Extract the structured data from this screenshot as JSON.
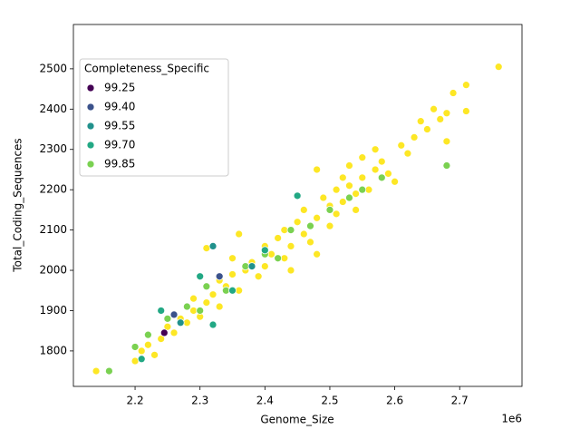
{
  "chart_data": {
    "type": "scatter",
    "x_label": "Genome_Size",
    "y_label": "Total_Coding_Sequences",
    "x_offset_label": "1e6",
    "legend_title": "Completeness_Specific",
    "legend_position": "upper left",
    "xlim": [
      2.105,
      2.796
    ],
    "xticks": [
      2.2,
      2.3,
      2.4,
      2.5,
      2.6,
      2.7
    ],
    "ylim": [
      1712,
      2610
    ],
    "yticks": [
      1800,
      1900,
      2000,
      2100,
      2200,
      2300,
      2400,
      2500
    ],
    "series": [
      {
        "color": "#fde725",
        "x": [
          2.14,
          2.2,
          2.21,
          2.22,
          2.23,
          2.24,
          2.25,
          2.26,
          2.27,
          2.28,
          2.29,
          2.3,
          2.31,
          2.31,
          2.32,
          2.33,
          2.33,
          2.34,
          2.35,
          2.35,
          2.36,
          2.37,
          2.38,
          2.39,
          2.4,
          2.4,
          2.41,
          2.42,
          2.43,
          2.43,
          2.44,
          2.45,
          2.46,
          2.46,
          2.47,
          2.48,
          2.48,
          2.49,
          2.5,
          2.5,
          2.51,
          2.51,
          2.52,
          2.52,
          2.53,
          2.53,
          2.54,
          2.54,
          2.55,
          2.55,
          2.56,
          2.57,
          2.57,
          2.58,
          2.59,
          2.6,
          2.61,
          2.62,
          2.63,
          2.64,
          2.65,
          2.66,
          2.67,
          2.68,
          2.68,
          2.69,
          2.71,
          2.71,
          2.76,
          2.29,
          2.36,
          2.44,
          2.48
        ],
        "values": [
          1750,
          1775,
          1800,
          1815,
          1790,
          1830,
          1860,
          1845,
          1880,
          1870,
          1900,
          1885,
          1920,
          2055,
          1940,
          1910,
          1975,
          1960,
          1990,
          2030,
          1950,
          2000,
          2020,
          1985,
          2060,
          2010,
          2040,
          2080,
          2100,
          2030,
          2060,
          2120,
          2090,
          2150,
          2070,
          2130,
          2040,
          2180,
          2160,
          2110,
          2200,
          2140,
          2230,
          2170,
          2210,
          2260,
          2190,
          2150,
          2280,
          2230,
          2200,
          2300,
          2250,
          2270,
          2240,
          2220,
          2310,
          2290,
          2330,
          2370,
          2350,
          2400,
          2375,
          2320,
          2390,
          2440,
          2460,
          2395,
          2505,
          1930,
          2090,
          2000,
          2250
        ]
      },
      {
        "name": "99.85",
        "color": "#7ad151",
        "x": [
          2.16,
          2.2,
          2.22,
          2.25,
          2.28,
          2.31,
          2.34,
          2.37,
          2.4,
          2.44,
          2.47,
          2.5,
          2.53,
          2.55,
          2.58,
          2.68,
          2.3,
          2.42
        ],
        "values": [
          1750,
          1810,
          1840,
          1880,
          1910,
          1960,
          1950,
          2010,
          2040,
          2100,
          2110,
          2150,
          2180,
          2200,
          2230,
          2260,
          1900,
          2030
        ]
      },
      {
        "name": "99.70",
        "color": "#22a884",
        "x": [
          2.24,
          2.3,
          2.32,
          2.45,
          2.35,
          2.4,
          2.21
        ],
        "values": [
          1900,
          1985,
          1865,
          2185,
          1950,
          2050,
          1780
        ]
      },
      {
        "name": "99.55",
        "color": "#21918c",
        "x": [
          2.32,
          2.27,
          2.38
        ],
        "values": [
          2060,
          1870,
          2010
        ]
      },
      {
        "name": "99.40",
        "color": "#3b528b",
        "x": [
          2.26,
          2.33
        ],
        "values": [
          1890,
          1985
        ]
      },
      {
        "name": "99.25",
        "color": "#440154",
        "x": [
          2.245
        ],
        "values": [
          1845
        ]
      }
    ]
  }
}
